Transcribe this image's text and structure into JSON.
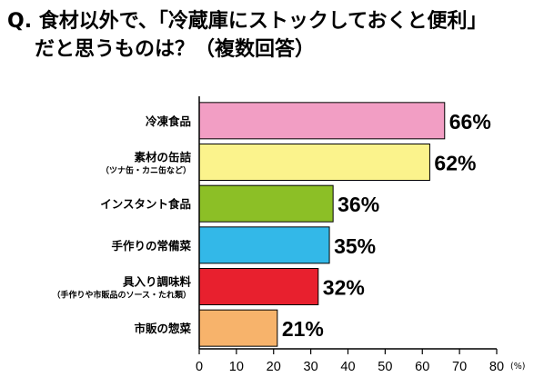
{
  "question": {
    "line1": "Q. 食材以外で、「冷蔵庫にストックしておくと便利」",
    "line2": "だと思うものは？（複数回答）"
  },
  "chart_data": {
    "type": "bar",
    "orientation": "horizontal",
    "categories": [
      {
        "label": "冷凍食品",
        "sub": ""
      },
      {
        "label": "素材の缶詰",
        "sub": "（ツナ缶・カニ缶など）"
      },
      {
        "label": "インスタント食品",
        "sub": ""
      },
      {
        "label": "手作りの常備菜",
        "sub": ""
      },
      {
        "label": "具入り調味料",
        "sub": "（手作りや市販品のソース・たれ類）"
      },
      {
        "label": "市販の惣菜",
        "sub": ""
      }
    ],
    "values": [
      66,
      62,
      36,
      35,
      32,
      21
    ],
    "value_labels": [
      "66%",
      "62%",
      "36%",
      "35%",
      "32%",
      "21%"
    ],
    "colors": [
      "#f29ec4",
      "#fbf38c",
      "#8cbf26",
      "#33b8e8",
      "#e8202e",
      "#f7b36b"
    ],
    "xlim": [
      0,
      80
    ],
    "xticks": [
      0,
      10,
      20,
      30,
      40,
      50,
      60,
      70,
      80
    ],
    "xtick_labels": [
      "0",
      "10",
      "20",
      "30",
      "40",
      "50",
      "60",
      "70",
      "80"
    ],
    "unit": "(%)",
    "grid": false
  }
}
